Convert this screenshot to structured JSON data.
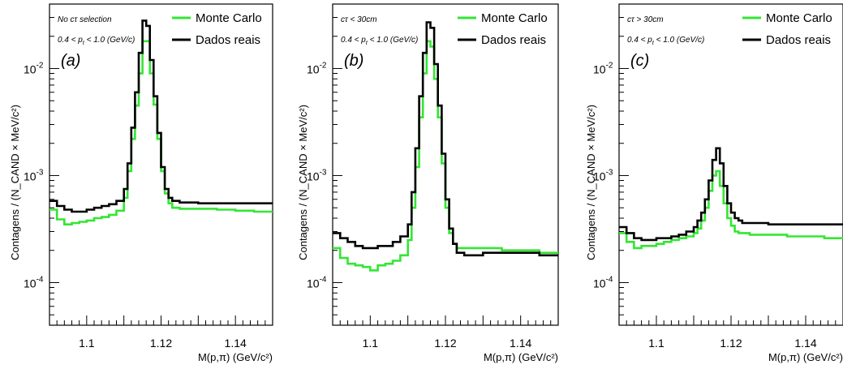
{
  "chart_data": [
    {
      "type": "line",
      "panel_label": "(a)",
      "selection": "No cτ selection",
      "pt_range": {
        "prefix": "0.4 < p",
        "sub": "t",
        "suffix": " < 1.0 (GeV/c)"
      },
      "xlabel": "M(p,π) (GeV/c²)",
      "ylabel": "Contagens / (N_CAND × MeV/c²)",
      "xlim": [
        1.09,
        1.15
      ],
      "ylim": [
        4e-05,
        0.04
      ],
      "yscale": "log",
      "xticks": [
        1.1,
        1.12,
        1.14
      ],
      "xtick_labels": [
        "1.1",
        "1.12",
        "1.14"
      ],
      "ytick_labels": [
        {
          "base": "10",
          "exp": "-2"
        },
        {
          "base": "10",
          "exp": "-3"
        },
        {
          "base": "10",
          "exp": "-4"
        }
      ],
      "ytick_values": [
        0.01,
        0.001,
        0.0001
      ],
      "legend": {
        "position": "top-right",
        "entries": [
          "Monte Carlo",
          "Dados reais"
        ]
      },
      "series": [
        {
          "name": "Monte Carlo",
          "color": "#33e633",
          "x": [
            [
              1.09,
              1.092
            ],
            [
              1.092,
              1.094
            ],
            [
              1.094,
              1.096
            ],
            [
              1.096,
              1.098
            ],
            [
              1.098,
              1.1
            ],
            [
              1.1,
              1.102
            ],
            [
              1.102,
              1.104
            ],
            [
              1.104,
              1.106
            ],
            [
              1.106,
              1.108
            ],
            [
              1.108,
              1.11
            ],
            [
              1.11,
              1.111
            ],
            [
              1.111,
              1.112
            ],
            [
              1.112,
              1.113
            ],
            [
              1.113,
              1.114
            ],
            [
              1.114,
              1.115
            ],
            [
              1.115,
              1.116
            ],
            [
              1.116,
              1.117
            ],
            [
              1.117,
              1.118
            ],
            [
              1.118,
              1.119
            ],
            [
              1.119,
              1.12
            ],
            [
              1.12,
              1.121
            ],
            [
              1.121,
              1.122
            ],
            [
              1.122,
              1.123
            ],
            [
              1.123,
              1.125
            ],
            [
              1.125,
              1.13
            ],
            [
              1.13,
              1.135
            ],
            [
              1.135,
              1.14
            ],
            [
              1.14,
              1.145
            ],
            [
              1.145,
              1.15
            ]
          ],
          "y": [
            0.00048,
            0.00039,
            0.00035,
            0.00036,
            0.00037,
            0.00038,
            0.0004,
            0.00041,
            0.00043,
            0.00047,
            0.00062,
            0.0011,
            0.0022,
            0.0045,
            0.009,
            0.018,
            0.018,
            0.009,
            0.0046,
            0.0022,
            0.0011,
            0.00068,
            0.00055,
            0.0005,
            0.00049,
            0.00049,
            0.00048,
            0.00047,
            0.00046
          ]
        },
        {
          "name": "Dados reais",
          "color": "#000000",
          "x": [
            [
              1.09,
              1.092
            ],
            [
              1.092,
              1.094
            ],
            [
              1.094,
              1.096
            ],
            [
              1.096,
              1.098
            ],
            [
              1.098,
              1.1
            ],
            [
              1.1,
              1.102
            ],
            [
              1.102,
              1.104
            ],
            [
              1.104,
              1.106
            ],
            [
              1.106,
              1.108
            ],
            [
              1.108,
              1.11
            ],
            [
              1.11,
              1.111
            ],
            [
              1.111,
              1.112
            ],
            [
              1.112,
              1.113
            ],
            [
              1.113,
              1.114
            ],
            [
              1.114,
              1.115
            ],
            [
              1.115,
              1.116
            ],
            [
              1.116,
              1.117
            ],
            [
              1.117,
              1.118
            ],
            [
              1.118,
              1.119
            ],
            [
              1.119,
              1.12
            ],
            [
              1.12,
              1.121
            ],
            [
              1.121,
              1.122
            ],
            [
              1.122,
              1.123
            ],
            [
              1.123,
              1.125
            ],
            [
              1.125,
              1.13
            ],
            [
              1.13,
              1.135
            ],
            [
              1.135,
              1.14
            ],
            [
              1.14,
              1.145
            ],
            [
              1.145,
              1.15
            ]
          ],
          "y": [
            0.00058,
            0.00052,
            0.00048,
            0.00046,
            0.00046,
            0.00048,
            0.0005,
            0.00052,
            0.00054,
            0.00058,
            0.00075,
            0.0013,
            0.0028,
            0.006,
            0.014,
            0.028,
            0.025,
            0.012,
            0.0055,
            0.0025,
            0.0012,
            0.00075,
            0.00062,
            0.00058,
            0.00056,
            0.00055,
            0.00055,
            0.00055,
            0.00055
          ]
        }
      ]
    },
    {
      "type": "line",
      "panel_label": "(b)",
      "selection": "cτ < 30cm",
      "pt_range": {
        "prefix": "0.4 < p",
        "sub": "t",
        "suffix": " < 1.0 (GeV/c)"
      },
      "xlabel": "M(p,π) (GeV/c²)",
      "ylabel": "Contagens / (N_CAND × MeV/c²)",
      "xlim": [
        1.09,
        1.15
      ],
      "ylim": [
        4e-05,
        0.04
      ],
      "yscale": "log",
      "xticks": [
        1.1,
        1.12,
        1.14
      ],
      "xtick_labels": [
        "1.1",
        "1.12",
        "1.14"
      ],
      "ytick_labels": [
        {
          "base": "10",
          "exp": "-2"
        },
        {
          "base": "10",
          "exp": "-3"
        },
        {
          "base": "10",
          "exp": "-4"
        }
      ],
      "ytick_values": [
        0.01,
        0.001,
        0.0001
      ],
      "legend": {
        "position": "top-right",
        "entries": [
          "Monte Carlo",
          "Dados reais"
        ]
      },
      "series": [
        {
          "name": "Monte Carlo",
          "color": "#33e633",
          "x": [
            [
              1.09,
              1.092
            ],
            [
              1.092,
              1.094
            ],
            [
              1.094,
              1.096
            ],
            [
              1.096,
              1.098
            ],
            [
              1.098,
              1.1
            ],
            [
              1.1,
              1.102
            ],
            [
              1.102,
              1.104
            ],
            [
              1.104,
              1.106
            ],
            [
              1.106,
              1.108
            ],
            [
              1.108,
              1.11
            ],
            [
              1.11,
              1.111
            ],
            [
              1.111,
              1.112
            ],
            [
              1.112,
              1.113
            ],
            [
              1.113,
              1.114
            ],
            [
              1.114,
              1.115
            ],
            [
              1.115,
              1.116
            ],
            [
              1.116,
              1.117
            ],
            [
              1.117,
              1.118
            ],
            [
              1.118,
              1.119
            ],
            [
              1.119,
              1.12
            ],
            [
              1.12,
              1.121
            ],
            [
              1.121,
              1.122
            ],
            [
              1.122,
              1.123
            ],
            [
              1.123,
              1.125
            ],
            [
              1.125,
              1.13
            ],
            [
              1.13,
              1.135
            ],
            [
              1.135,
              1.14
            ],
            [
              1.14,
              1.145
            ],
            [
              1.145,
              1.15
            ]
          ],
          "y": [
            0.00021,
            0.00017,
            0.00015,
            0.000145,
            0.00014,
            0.00013,
            0.000145,
            0.00015,
            0.00016,
            0.00018,
            0.00025,
            0.0005,
            0.0012,
            0.0035,
            0.009,
            0.018,
            0.016,
            0.008,
            0.0035,
            0.0013,
            0.0005,
            0.00029,
            0.00023,
            0.00021,
            0.00021,
            0.00021,
            0.0002,
            0.0002,
            0.00019
          ]
        },
        {
          "name": "Dados reais",
          "color": "#000000",
          "x": [
            [
              1.09,
              1.092
            ],
            [
              1.092,
              1.094
            ],
            [
              1.094,
              1.096
            ],
            [
              1.096,
              1.098
            ],
            [
              1.098,
              1.1
            ],
            [
              1.1,
              1.102
            ],
            [
              1.102,
              1.104
            ],
            [
              1.104,
              1.106
            ],
            [
              1.106,
              1.108
            ],
            [
              1.108,
              1.11
            ],
            [
              1.11,
              1.111
            ],
            [
              1.111,
              1.112
            ],
            [
              1.112,
              1.113
            ],
            [
              1.113,
              1.114
            ],
            [
              1.114,
              1.115
            ],
            [
              1.115,
              1.116
            ],
            [
              1.116,
              1.117
            ],
            [
              1.117,
              1.118
            ],
            [
              1.118,
              1.119
            ],
            [
              1.119,
              1.12
            ],
            [
              1.12,
              1.121
            ],
            [
              1.121,
              1.122
            ],
            [
              1.122,
              1.123
            ],
            [
              1.123,
              1.125
            ],
            [
              1.125,
              1.13
            ],
            [
              1.13,
              1.135
            ],
            [
              1.135,
              1.14
            ],
            [
              1.14,
              1.145
            ],
            [
              1.145,
              1.15
            ]
          ],
          "y": [
            0.00029,
            0.00026,
            0.00024,
            0.00022,
            0.00021,
            0.00021,
            0.00022,
            0.00022,
            0.00024,
            0.00027,
            0.00035,
            0.0007,
            0.0018,
            0.0055,
            0.014,
            0.027,
            0.024,
            0.011,
            0.0045,
            0.0016,
            0.0006,
            0.00032,
            0.00023,
            0.00019,
            0.00018,
            0.00019,
            0.00019,
            0.00019,
            0.00018
          ]
        }
      ]
    },
    {
      "type": "line",
      "panel_label": "(c)",
      "selection": "cτ > 30cm",
      "pt_range": {
        "prefix": "0.4 < p",
        "sub": "t",
        "suffix": " < 1.0 (GeV/c)"
      },
      "xlabel": "M(p,π) (GeV/c²)",
      "ylabel": "Contagens / (N_CAND × MeV/c²)",
      "xlim": [
        1.09,
        1.15
      ],
      "ylim": [
        4e-05,
        0.04
      ],
      "yscale": "log",
      "xticks": [
        1.1,
        1.12,
        1.14
      ],
      "xtick_labels": [
        "1.1",
        "1.12",
        "1.14"
      ],
      "ytick_labels": [
        {
          "base": "10",
          "exp": "-2"
        },
        {
          "base": "10",
          "exp": "-3"
        },
        {
          "base": "10",
          "exp": "-4"
        }
      ],
      "ytick_values": [
        0.01,
        0.001,
        0.0001
      ],
      "legend": {
        "position": "top-right",
        "entries": [
          "Monte Carlo",
          "Dados reais"
        ]
      },
      "series": [
        {
          "name": "Monte Carlo",
          "color": "#33e633",
          "x": [
            [
              1.09,
              1.092
            ],
            [
              1.092,
              1.094
            ],
            [
              1.094,
              1.096
            ],
            [
              1.096,
              1.098
            ],
            [
              1.098,
              1.1
            ],
            [
              1.1,
              1.102
            ],
            [
              1.102,
              1.104
            ],
            [
              1.104,
              1.106
            ],
            [
              1.106,
              1.108
            ],
            [
              1.108,
              1.11
            ],
            [
              1.11,
              1.111
            ],
            [
              1.111,
              1.112
            ],
            [
              1.112,
              1.113
            ],
            [
              1.113,
              1.114
            ],
            [
              1.114,
              1.115
            ],
            [
              1.115,
              1.116
            ],
            [
              1.116,
              1.117
            ],
            [
              1.117,
              1.118
            ],
            [
              1.118,
              1.119
            ],
            [
              1.119,
              1.12
            ],
            [
              1.12,
              1.121
            ],
            [
              1.121,
              1.122
            ],
            [
              1.122,
              1.123
            ],
            [
              1.123,
              1.125
            ],
            [
              1.125,
              1.13
            ],
            [
              1.13,
              1.135
            ],
            [
              1.135,
              1.14
            ],
            [
              1.14,
              1.145
            ],
            [
              1.145,
              1.15
            ]
          ],
          "y": [
            0.00029,
            0.00024,
            0.00021,
            0.00022,
            0.00022,
            0.00023,
            0.00024,
            0.00025,
            0.00026,
            0.00027,
            0.00029,
            0.00032,
            0.00038,
            0.0005,
            0.00072,
            0.001,
            0.0011,
            0.0008,
            0.00055,
            0.0004,
            0.00034,
            0.0003,
            0.00029,
            0.00029,
            0.00028,
            0.00028,
            0.00027,
            0.00027,
            0.00026
          ]
        },
        {
          "name": "Dados reais",
          "color": "#000000",
          "x": [
            [
              1.09,
              1.092
            ],
            [
              1.092,
              1.094
            ],
            [
              1.094,
              1.096
            ],
            [
              1.096,
              1.098
            ],
            [
              1.098,
              1.1
            ],
            [
              1.1,
              1.102
            ],
            [
              1.102,
              1.104
            ],
            [
              1.104,
              1.106
            ],
            [
              1.106,
              1.108
            ],
            [
              1.108,
              1.11
            ],
            [
              1.11,
              1.111
            ],
            [
              1.111,
              1.112
            ],
            [
              1.112,
              1.113
            ],
            [
              1.113,
              1.114
            ],
            [
              1.114,
              1.115
            ],
            [
              1.115,
              1.116
            ],
            [
              1.116,
              1.117
            ],
            [
              1.117,
              1.118
            ],
            [
              1.118,
              1.119
            ],
            [
              1.119,
              1.12
            ],
            [
              1.12,
              1.121
            ],
            [
              1.121,
              1.122
            ],
            [
              1.122,
              1.123
            ],
            [
              1.123,
              1.125
            ],
            [
              1.125,
              1.13
            ],
            [
              1.13,
              1.135
            ],
            [
              1.135,
              1.14
            ],
            [
              1.14,
              1.145
            ],
            [
              1.145,
              1.15
            ]
          ],
          "y": [
            0.00033,
            0.00029,
            0.00026,
            0.00025,
            0.00025,
            0.00026,
            0.00026,
            0.00027,
            0.00028,
            0.0003,
            0.00033,
            0.00038,
            0.00045,
            0.0006,
            0.0009,
            0.0014,
            0.0018,
            0.0013,
            0.0008,
            0.00055,
            0.00045,
            0.0004,
            0.00038,
            0.00036,
            0.00036,
            0.00035,
            0.00035,
            0.00035,
            0.00035
          ]
        }
      ]
    }
  ]
}
